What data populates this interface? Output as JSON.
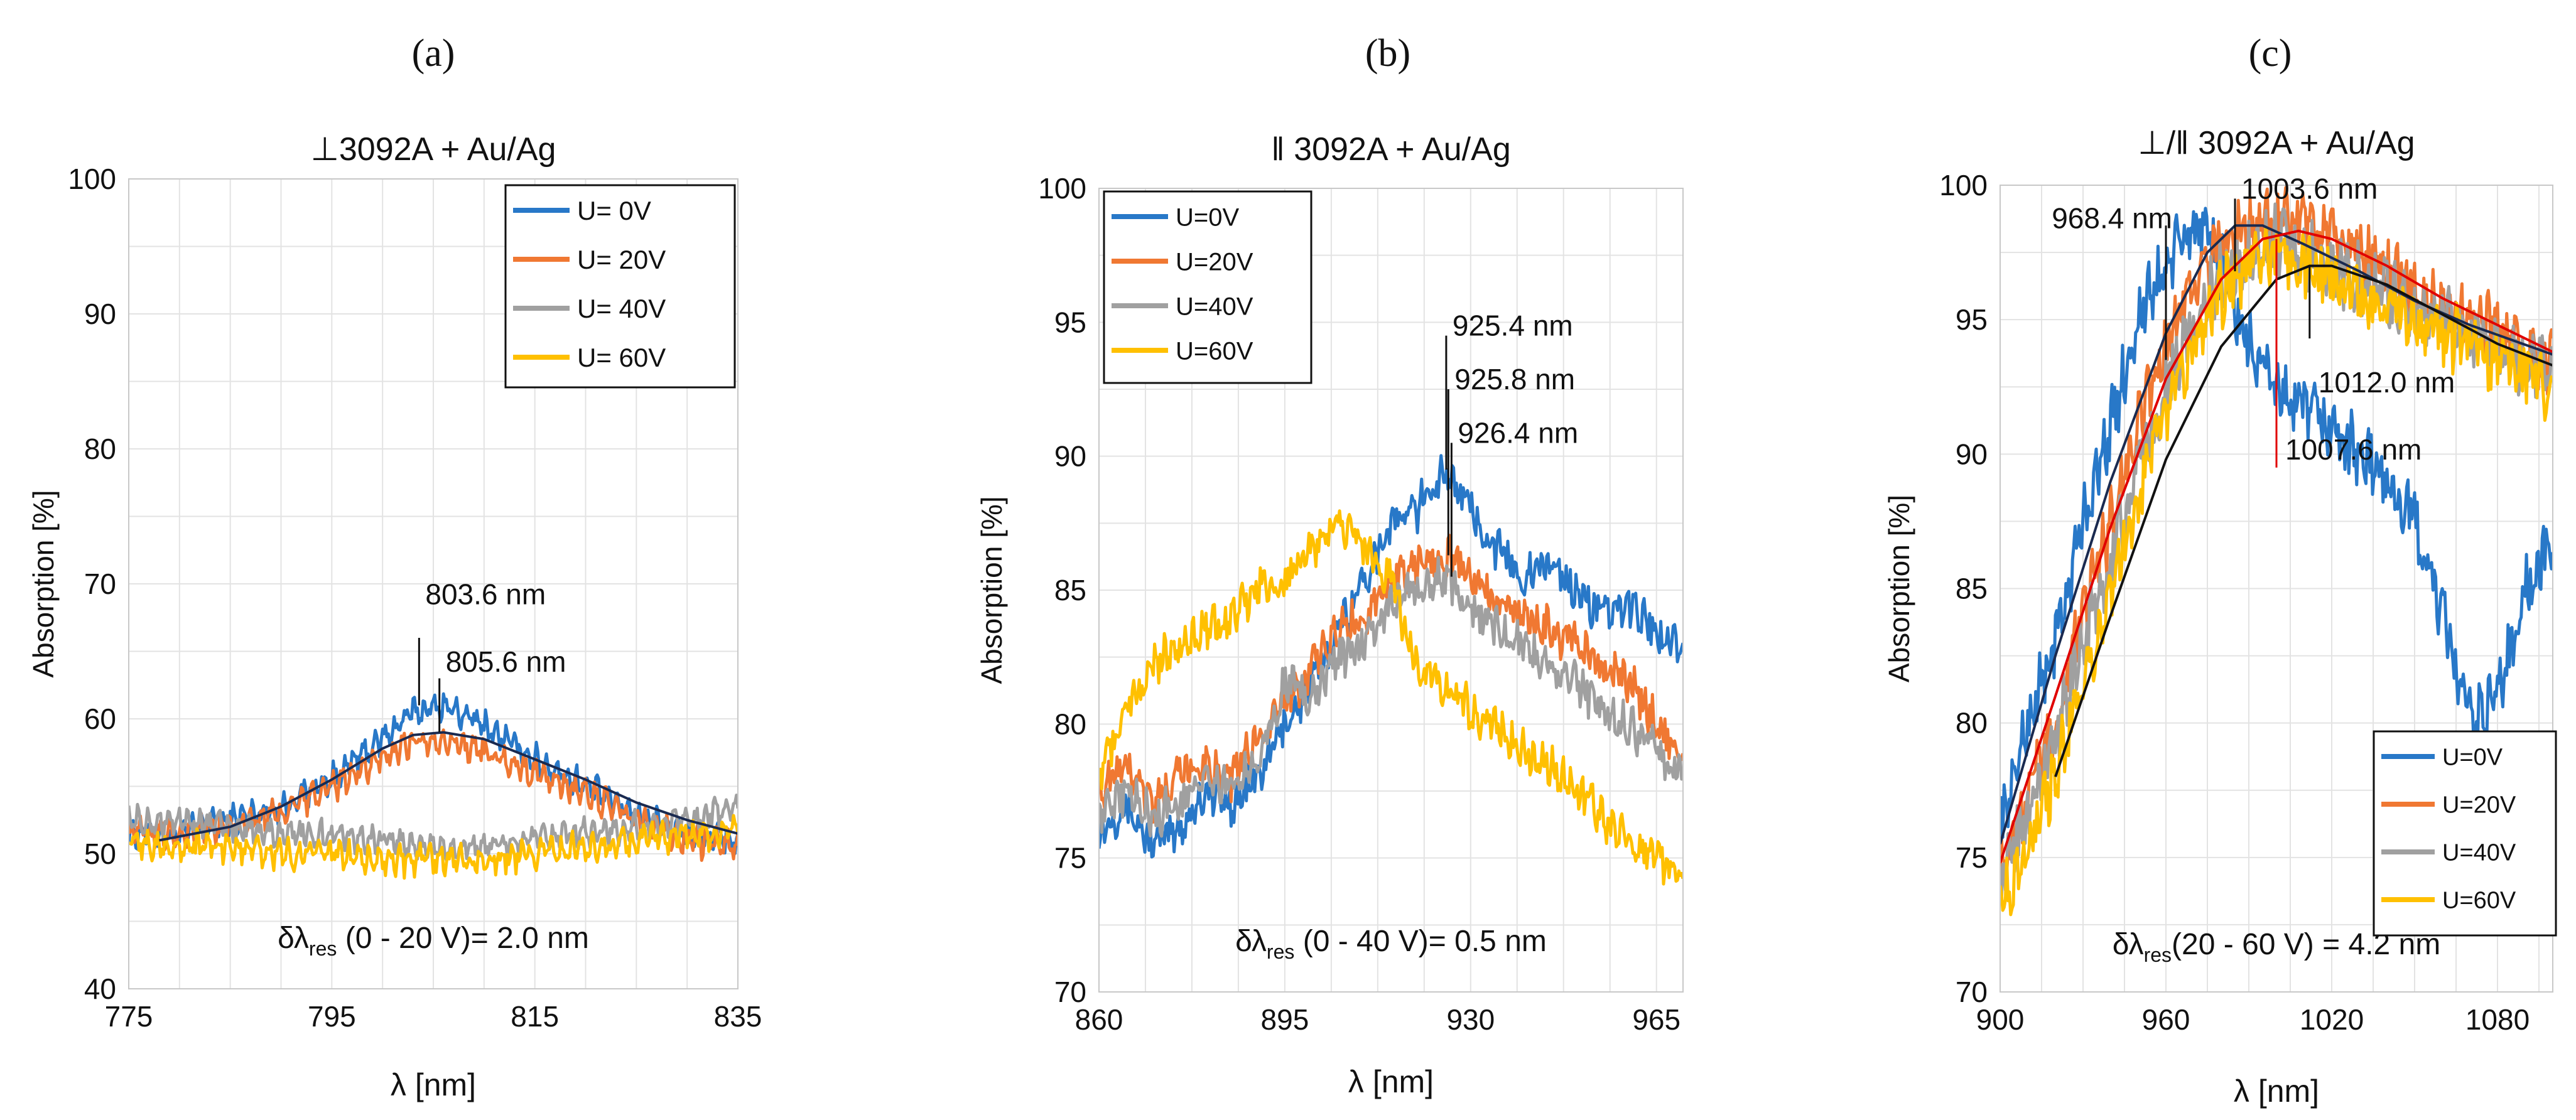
{
  "figure": {
    "panels": [
      {
        "panel_label": "(a)",
        "chart_data": {
          "type": "line",
          "title": "⊥3092A + Au/Ag",
          "xlabel": "λ [nm]",
          "ylabel": "Absorption [%]",
          "xlim": [
            775,
            835
          ],
          "ylim": [
            40,
            100
          ],
          "xticks": [
            775,
            795,
            815,
            835
          ],
          "yticks": [
            40,
            50,
            60,
            70,
            80,
            90,
            100
          ],
          "grid": true,
          "legend_position": "top-right",
          "series": [
            {
              "name": "U= 0V",
              "color": "#2878c8",
              "x": [
                775,
                780,
                785,
                790,
                795,
                800,
                803,
                806,
                810,
                815,
                820,
                825,
                830,
                835
              ],
              "y": [
                51.5,
                51.5,
                52.5,
                53.5,
                55.5,
                58.5,
                60.5,
                61,
                59.5,
                57,
                55,
                53,
                51.5,
                51
              ]
            },
            {
              "name": "U= 20V",
              "color": "#f07832",
              "x": [
                775,
                780,
                785,
                790,
                795,
                800,
                803,
                806,
                810,
                815,
                820,
                825,
                830,
                835
              ],
              "y": [
                51.5,
                51.5,
                52,
                53,
                55,
                57,
                58.5,
                58.5,
                57.5,
                56,
                54.5,
                52.5,
                51,
                50.5
              ]
            },
            {
              "name": "U= 40V",
              "color": "#a0a0a0",
              "x": [
                775,
                780,
                785,
                790,
                795,
                800,
                805,
                810,
                815,
                820,
                825,
                830,
                835
              ],
              "y": [
                52.5,
                52.5,
                52,
                51.5,
                51.5,
                51,
                50.5,
                50.5,
                51,
                51.5,
                52,
                52.5,
                53.5
              ]
            },
            {
              "name": "U= 60V",
              "color": "#ffc000",
              "x": [
                775,
                780,
                785,
                790,
                795,
                800,
                805,
                810,
                815,
                820,
                825,
                830,
                835
              ],
              "y": [
                51,
                50.5,
                50.5,
                50,
                50,
                49.5,
                49.5,
                49.5,
                50,
                50.5,
                51,
                51.5,
                51.5
              ]
            }
          ],
          "fits": [
            {
              "color": "#1a2a50",
              "x": [
                778,
                785,
                790,
                795,
                800,
                803,
                806,
                810,
                815,
                820,
                825,
                830,
                835
              ],
              "y": [
                51,
                52,
                53.5,
                55.5,
                57.8,
                58.8,
                59,
                58.5,
                57,
                55.5,
                53.8,
                52.5,
                51.5
              ]
            }
          ],
          "annotations": [
            {
              "text": "803.6 nm",
              "x": 803.6,
              "y_from": 61,
              "y_to": 66,
              "label_y": 68.5
            },
            {
              "text": "805.6 nm",
              "x": 805.6,
              "y_from": 59,
              "y_to": 63,
              "label_y": 63.5
            }
          ],
          "resolution_note": {
            "prefix": "δλ",
            "subscript": "res",
            "suffix": " (0 - 20 V)= 2.0 nm"
          }
        }
      },
      {
        "panel_label": "(b)",
        "chart_data": {
          "type": "line",
          "title": "‖ 3092A + Au/Ag",
          "xlabel": "λ [nm]",
          "ylabel": "Absorption [%]",
          "xlim": [
            860,
            970
          ],
          "ylim": [
            70,
            100
          ],
          "xticks": [
            860,
            895,
            930,
            965
          ],
          "yticks": [
            70,
            75,
            80,
            85,
            90,
            95,
            100
          ],
          "grid": true,
          "legend_position": "top-left",
          "series": [
            {
              "name": "U=0V",
              "color": "#2878c8",
              "x": [
                860,
                865,
                870,
                875,
                880,
                885,
                890,
                895,
                900,
                905,
                910,
                915,
                920,
                925,
                930,
                935,
                940,
                945,
                950,
                955,
                960,
                965,
                970
              ],
              "y": [
                76,
                77,
                75.5,
                76,
                77.5,
                77,
                78,
                80,
                81.5,
                83.5,
                85.5,
                87.5,
                88,
                89.5,
                88,
                86.5,
                85.5,
                86,
                85,
                84,
                84.5,
                83.5,
                83
              ]
            },
            {
              "name": "U=20V",
              "color": "#f07832",
              "x": [
                860,
                865,
                870,
                875,
                880,
                885,
                890,
                895,
                900,
                905,
                910,
                915,
                920,
                925,
                930,
                935,
                940,
                945,
                950,
                955,
                960,
                965,
                970
              ],
              "y": [
                77.5,
                78.5,
                77,
                78,
                78.5,
                78,
                79.5,
                81,
                82,
                83.5,
                84,
                85.5,
                86,
                86.3,
                85.5,
                84.5,
                84,
                83.5,
                83,
                82,
                81.5,
                80,
                79
              ]
            },
            {
              "name": "U=40V",
              "color": "#a0a0a0",
              "x": [
                860,
                865,
                870,
                875,
                880,
                885,
                890,
                895,
                900,
                905,
                910,
                915,
                920,
                925,
                930,
                935,
                940,
                945,
                950,
                955,
                960,
                965,
                970
              ],
              "y": [
                76.5,
                77.5,
                76.5,
                77,
                78,
                77.5,
                79,
                81.5,
                81,
                82.5,
                83,
                84.5,
                85,
                85.5,
                84.5,
                83.5,
                83,
                82,
                81.5,
                80.5,
                80,
                79,
                78
              ]
            },
            {
              "name": "U=60V",
              "color": "#ffc000",
              "x": [
                860,
                865,
                870,
                875,
                880,
                885,
                890,
                895,
                900,
                905,
                910,
                915,
                920,
                925,
                930,
                935,
                940,
                945,
                950,
                955,
                960,
                965,
                970
              ],
              "y": [
                78,
                80.5,
                82,
                83,
                83.5,
                84,
                85,
                85.5,
                86.5,
                87.5,
                86.5,
                85.5,
                82,
                81.5,
                80.5,
                80,
                79,
                78.5,
                77.5,
                76.5,
                75.5,
                75,
                74
              ]
            }
          ],
          "fits": [],
          "annotations": [
            {
              "text": "925.4 nm",
              "x": 925.4,
              "y_from": 89.5,
              "y_to": 94.5,
              "label_y": 94.5
            },
            {
              "text": "925.8 nm",
              "x": 925.8,
              "y_from": 86.3,
              "y_to": 92.5,
              "label_y": 92.5
            },
            {
              "text": "926.4 nm",
              "x": 926.4,
              "y_from": 85.5,
              "y_to": 90.5,
              "label_y": 90.5
            }
          ],
          "resolution_note": {
            "prefix": "δλ",
            "subscript": "res",
            "suffix": " (0 - 40 V)= 0.5 nm"
          }
        }
      },
      {
        "panel_label": "(c)",
        "chart_data": {
          "type": "line",
          "title": "⊥/‖ 3092A + Au/Ag",
          "xlabel": "λ [nm]",
          "ylabel": "Absorption [%]",
          "xlim": [
            900,
            1100
          ],
          "ylim": [
            70,
            100
          ],
          "xticks": [
            900,
            960,
            1020,
            1080
          ],
          "yticks": [
            70,
            75,
            80,
            85,
            90,
            95,
            100
          ],
          "grid": true,
          "legend_position": "bottom-right",
          "series": [
            {
              "name": "U=0V",
              "color": "#2878c8",
              "x": [
                900,
                910,
                920,
                930,
                940,
                950,
                960,
                970,
                980,
                990,
                1000,
                1010,
                1020,
                1030,
                1040,
                1050,
                1060,
                1070,
                1080,
                1090,
                1100
              ],
              "y": [
                76,
                80,
                83,
                87.5,
                91,
                95,
                97,
                98.5,
                97,
                94,
                92.5,
                91.5,
                91,
                90,
                89,
                87.5,
                84,
                80,
                81,
                85,
                86.5
              ]
            },
            {
              "name": "U=20V",
              "color": "#f07832",
              "x": [
                900,
                910,
                920,
                930,
                940,
                950,
                960,
                970,
                980,
                990,
                1000,
                1010,
                1020,
                1030,
                1040,
                1050,
                1060,
                1070,
                1080,
                1090,
                1100
              ],
              "y": [
                74.5,
                77,
                80,
                84,
                87.5,
                91,
                94,
                96.5,
                98,
                98.5,
                98.5,
                98.5,
                98,
                97.5,
                97,
                96,
                95.5,
                95,
                94.5,
                94,
                93.5
              ]
            },
            {
              "name": "U=40V",
              "color": "#a0a0a0",
              "x": [
                900,
                910,
                920,
                930,
                940,
                950,
                960,
                970,
                980,
                990,
                1000,
                1010,
                1020,
                1030,
                1040,
                1050,
                1060,
                1070,
                1080,
                1090,
                1100
              ],
              "y": [
                74,
                76.5,
                79.5,
                83,
                86,
                89.5,
                92.5,
                95,
                96.5,
                97.5,
                98,
                97.5,
                97,
                96.5,
                96,
                95.5,
                95,
                94.5,
                94,
                93.5,
                93
              ]
            },
            {
              "name": "U=60V",
              "color": "#ffc000",
              "x": [
                900,
                910,
                920,
                930,
                940,
                950,
                960,
                970,
                980,
                990,
                1000,
                1010,
                1020,
                1030,
                1040,
                1050,
                1060,
                1070,
                1080,
                1090,
                1100
              ],
              "y": [
                73,
                75.5,
                78,
                81.5,
                85,
                88.5,
                91.5,
                94,
                96,
                97,
                97.5,
                97,
                96.5,
                96,
                95.5,
                95,
                94.5,
                94,
                93.5,
                93,
                92.5
              ]
            }
          ],
          "fits": [
            {
              "color": "#1a2a50",
              "x": [
                900,
                920,
                940,
                960,
                975,
                985,
                995,
                1010,
                1030,
                1050,
                1070,
                1100
              ],
              "y": [
                75.5,
                82.5,
                89,
                94.5,
                97.5,
                98.5,
                98.5,
                97.8,
                96.8,
                95.7,
                94.8,
                93.7
              ]
            },
            {
              "color": "#e00000",
              "x": [
                900,
                920,
                940,
                960,
                980,
                995,
                1008,
                1020,
                1040,
                1060,
                1080,
                1100
              ],
              "y": [
                74.8,
                81,
                87.3,
                92.8,
                96.5,
                98,
                98.3,
                98,
                97,
                95.8,
                94.8,
                93.8
              ]
            },
            {
              "color": "#111111",
              "x": [
                920,
                940,
                960,
                980,
                1000,
                1012,
                1020,
                1040,
                1060,
                1080,
                1100
              ],
              "y": [
                78,
                84,
                89.8,
                94,
                96.5,
                97,
                97,
                96.3,
                95.2,
                94.1,
                93.3
              ]
            }
          ],
          "annotations": [
            {
              "text": "968.4 nm",
              "color": "#111111",
              "x": 960,
              "y_from": 93.5,
              "y_to": 98.5,
              "label_y": 98.4
            },
            {
              "text": "1003.6 nm",
              "color": "#111111",
              "x": 985,
              "y_from": 96.8,
              "y_to": 99.5,
              "label_y": 99.5
            },
            {
              "text": "1012.0 nm",
              "color": "#111111",
              "x": 1012,
              "y_from": 94.3,
              "y_to": 97,
              "label_y": 92.3
            },
            {
              "text": "1007.6 nm",
              "color": "#e00000",
              "x": 1000,
              "y_from": 89.5,
              "y_to": 98,
              "label_y": 89.8
            }
          ],
          "resolution_note": {
            "prefix": "δλ",
            "subscript": "res",
            "suffix": "(20 - 60 V) = 4.2 nm"
          }
        }
      }
    ]
  }
}
